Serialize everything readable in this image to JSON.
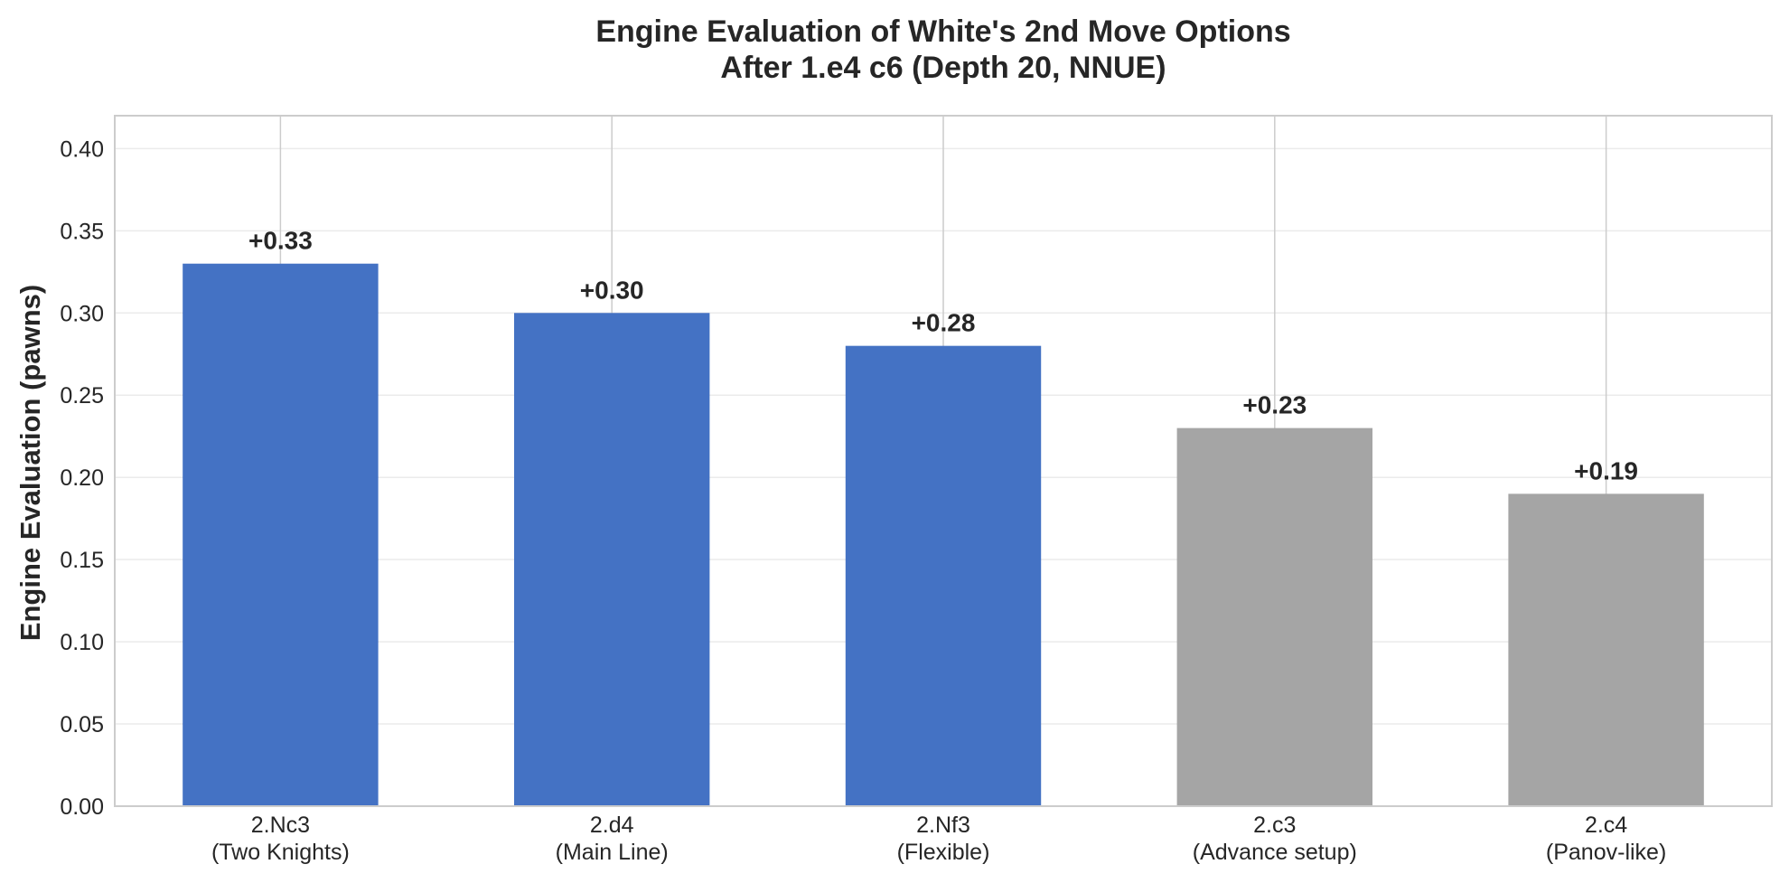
{
  "chart_data": {
    "type": "bar",
    "title": "Engine Evaluation of White's 2nd Move Options",
    "subtitle": "After 1.e4 c6 (Depth 20, NNUE)",
    "xlabel": "",
    "ylabel": "Engine Evaluation (pawns)",
    "ylim": [
      0,
      0.42
    ],
    "yticks": [
      "0.00",
      "0.05",
      "0.10",
      "0.15",
      "0.20",
      "0.25",
      "0.30",
      "0.35",
      "0.40"
    ],
    "categories": [
      [
        "2.Nc3",
        "(Two Knights)"
      ],
      [
        "2.d4",
        "(Main Line)"
      ],
      [
        "2.Nf3",
        "(Flexible)"
      ],
      [
        "2.c3",
        "(Advance setup)"
      ],
      [
        "2.c4",
        "(Panov-like)"
      ]
    ],
    "values": [
      0.33,
      0.3,
      0.28,
      0.23,
      0.19
    ],
    "data_labels": [
      "+0.33",
      "+0.30",
      "+0.28",
      "+0.23",
      "+0.19"
    ],
    "bar_colors": [
      "#4472c4",
      "#4472c4",
      "#4472c4",
      "#a5a5a5",
      "#a5a5a5"
    ],
    "grid": true,
    "legend": "none"
  }
}
